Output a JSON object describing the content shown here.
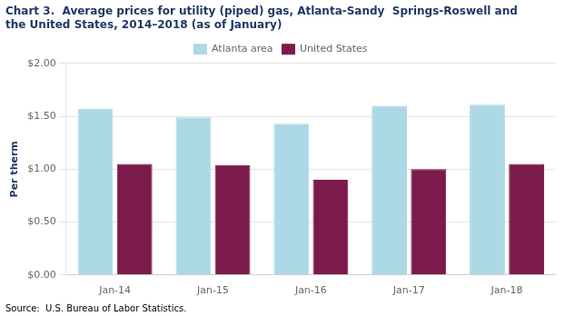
{
  "chart_data": {
    "type": "bar",
    "title": [
      "Chart 3.  Average prices for utility (piped) gas, Atlanta-Sandy  Springs-Roswell and",
      "the United States, 2014–2018 (as of January)"
    ],
    "ylabel": "Per therm",
    "annotations": [
      "Source:  U.S. Bureau of Labor Statistics."
    ],
    "categories": [
      "Jan-14",
      "Jan-15",
      "Jan-16",
      "Jan-17",
      "Jan-18"
    ],
    "series": [
      {
        "name": "Atlanta area",
        "color": "#ADD8E6",
        "values": [
          1.57,
          1.49,
          1.43,
          1.6,
          1.61
        ]
      },
      {
        "name": "United States",
        "color": "#7B1A4B",
        "values": [
          1.05,
          1.04,
          0.9,
          1.0,
          1.05
        ]
      }
    ],
    "ylim": [
      0.0,
      2.0
    ],
    "yticks": [
      {
        "value": 0.0,
        "label": "$0.00"
      },
      {
        "value": 0.5,
        "label": "$0.50"
      },
      {
        "value": 1.0,
        "label": "$1.00"
      },
      {
        "value": 1.5,
        "label": "$1.50"
      },
      {
        "value": 2.0,
        "label": "$2.00"
      }
    ],
    "grid": true,
    "legend": "top"
  }
}
